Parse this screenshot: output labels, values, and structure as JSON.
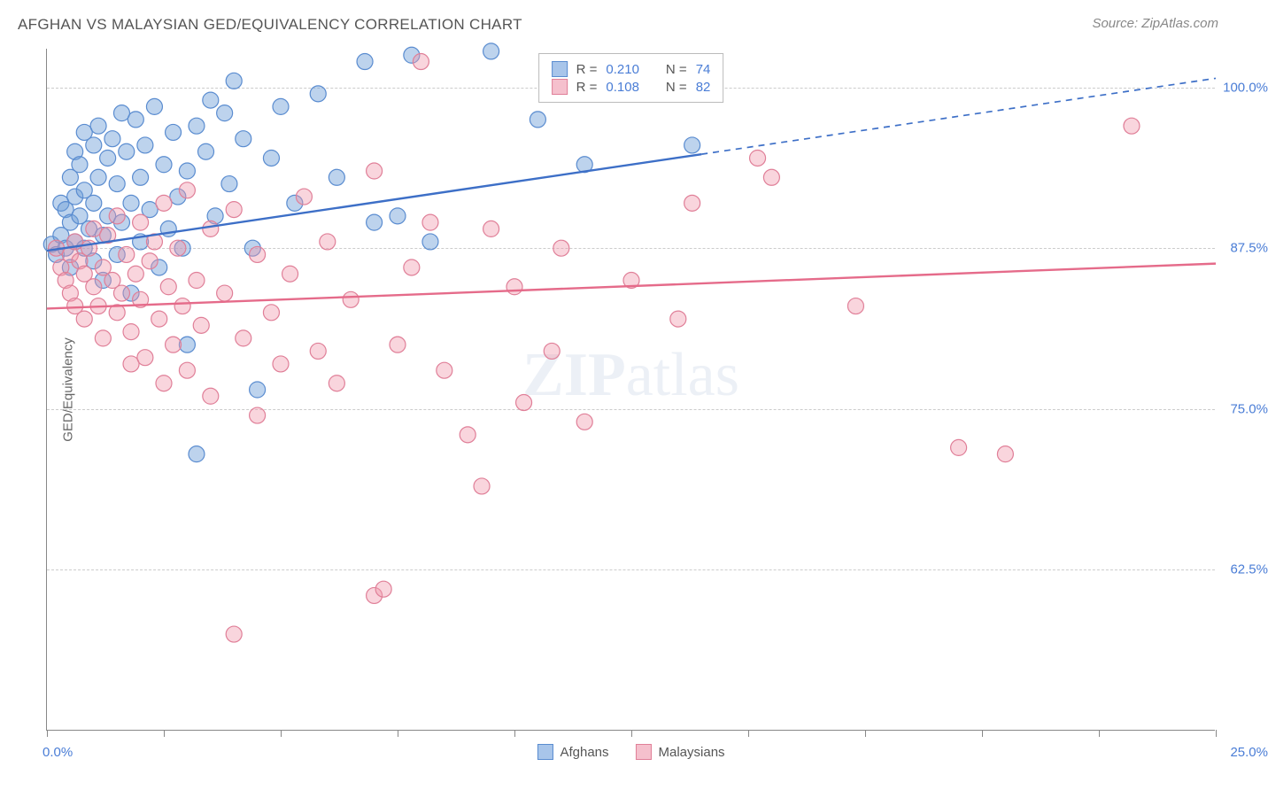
{
  "title": "AFGHAN VS MALAYSIAN GED/EQUIVALENCY CORRELATION CHART",
  "source": "Source: ZipAtlas.com",
  "watermark_bold": "ZIP",
  "watermark_rest": "atlas",
  "y_axis_title": "GED/Equivalency",
  "chart": {
    "type": "scatter",
    "xlim": [
      0,
      25
    ],
    "ylim": [
      50,
      103
    ],
    "x_ticks": [
      0,
      2.5,
      5,
      7.5,
      10,
      12.5,
      15,
      17.5,
      20,
      22.5,
      25
    ],
    "x_label_min": "0.0%",
    "x_label_max": "25.0%",
    "y_gridlines": [
      62.5,
      75,
      87.5,
      100
    ],
    "y_tick_labels": [
      "62.5%",
      "75.0%",
      "87.5%",
      "100.0%"
    ],
    "grid_color": "#cccccc",
    "background": "#ffffff",
    "series": [
      {
        "name": "Afghans",
        "color_fill": "rgba(108,157,216,0.45)",
        "color_stroke": "#5a8cd0",
        "swatch_fill": "#a8c5ea",
        "swatch_border": "#5a8cd0",
        "marker_radius": 9,
        "R": "0.210",
        "N": "74",
        "trend": {
          "x1": 0,
          "y1": 87.3,
          "x2": 14,
          "y2": 94.8,
          "x2_dash": 25,
          "y2_dash": 100.7,
          "color": "#3d6fc7",
          "width": 2.4
        },
        "points": [
          [
            0.1,
            87.8
          ],
          [
            0.2,
            87.0
          ],
          [
            0.3,
            91.0
          ],
          [
            0.3,
            88.5
          ],
          [
            0.4,
            90.5
          ],
          [
            0.4,
            87.5
          ],
          [
            0.5,
            93.0
          ],
          [
            0.5,
            89.5
          ],
          [
            0.5,
            86.0
          ],
          [
            0.6,
            95.0
          ],
          [
            0.6,
            91.5
          ],
          [
            0.6,
            88.0
          ],
          [
            0.7,
            94.0
          ],
          [
            0.7,
            90.0
          ],
          [
            0.8,
            96.5
          ],
          [
            0.8,
            92.0
          ],
          [
            0.8,
            87.5
          ],
          [
            0.9,
            89.0
          ],
          [
            1.0,
            95.5
          ],
          [
            1.0,
            91.0
          ],
          [
            1.0,
            86.5
          ],
          [
            1.1,
            97.0
          ],
          [
            1.1,
            93.0
          ],
          [
            1.2,
            88.5
          ],
          [
            1.2,
            85.0
          ],
          [
            1.3,
            94.5
          ],
          [
            1.3,
            90.0
          ],
          [
            1.4,
            96.0
          ],
          [
            1.5,
            92.5
          ],
          [
            1.5,
            87.0
          ],
          [
            1.6,
            98.0
          ],
          [
            1.6,
            89.5
          ],
          [
            1.7,
            95.0
          ],
          [
            1.8,
            91.0
          ],
          [
            1.8,
            84.0
          ],
          [
            1.9,
            97.5
          ],
          [
            2.0,
            93.0
          ],
          [
            2.0,
            88.0
          ],
          [
            2.1,
            95.5
          ],
          [
            2.2,
            90.5
          ],
          [
            2.3,
            98.5
          ],
          [
            2.4,
            86.0
          ],
          [
            2.5,
            94.0
          ],
          [
            2.6,
            89.0
          ],
          [
            2.7,
            96.5
          ],
          [
            2.8,
            91.5
          ],
          [
            2.9,
            87.5
          ],
          [
            3.0,
            80.0
          ],
          [
            3.0,
            93.5
          ],
          [
            3.2,
            97.0
          ],
          [
            3.2,
            71.5
          ],
          [
            3.4,
            95.0
          ],
          [
            3.5,
            99.0
          ],
          [
            3.6,
            90.0
          ],
          [
            3.8,
            98.0
          ],
          [
            3.9,
            92.5
          ],
          [
            4.0,
            100.5
          ],
          [
            4.2,
            96.0
          ],
          [
            4.4,
            87.5
          ],
          [
            4.5,
            76.5
          ],
          [
            4.8,
            94.5
          ],
          [
            5.0,
            98.5
          ],
          [
            5.3,
            91.0
          ],
          [
            5.8,
            99.5
          ],
          [
            6.2,
            93.0
          ],
          [
            6.8,
            102.0
          ],
          [
            7.0,
            89.5
          ],
          [
            7.5,
            90.0
          ],
          [
            7.8,
            102.5
          ],
          [
            8.2,
            88.0
          ],
          [
            9.5,
            102.8
          ],
          [
            10.5,
            97.5
          ],
          [
            11.5,
            94.0
          ],
          [
            13.8,
            95.5
          ]
        ]
      },
      {
        "name": "Malaysians",
        "color_fill": "rgba(240,150,170,0.40)",
        "color_stroke": "#e07f98",
        "swatch_fill": "#f5c0cd",
        "swatch_border": "#e07f98",
        "marker_radius": 9,
        "R": "0.108",
        "N": "82",
        "trend": {
          "x1": 0,
          "y1": 82.8,
          "x2": 25,
          "y2": 86.3,
          "color": "#e56b8a",
          "width": 2.4
        },
        "points": [
          [
            0.2,
            87.5
          ],
          [
            0.3,
            86.0
          ],
          [
            0.4,
            85.0
          ],
          [
            0.5,
            87.0
          ],
          [
            0.5,
            84.0
          ],
          [
            0.6,
            88.0
          ],
          [
            0.6,
            83.0
          ],
          [
            0.7,
            86.5
          ],
          [
            0.8,
            85.5
          ],
          [
            0.8,
            82.0
          ],
          [
            0.9,
            87.5
          ],
          [
            1.0,
            84.5
          ],
          [
            1.0,
            89.0
          ],
          [
            1.1,
            83.0
          ],
          [
            1.2,
            86.0
          ],
          [
            1.2,
            80.5
          ],
          [
            1.3,
            88.5
          ],
          [
            1.4,
            85.0
          ],
          [
            1.5,
            82.5
          ],
          [
            1.5,
            90.0
          ],
          [
            1.6,
            84.0
          ],
          [
            1.7,
            87.0
          ],
          [
            1.8,
            81.0
          ],
          [
            1.8,
            78.5
          ],
          [
            1.9,
            85.5
          ],
          [
            2.0,
            89.5
          ],
          [
            2.0,
            83.5
          ],
          [
            2.1,
            79.0
          ],
          [
            2.2,
            86.5
          ],
          [
            2.3,
            88.0
          ],
          [
            2.4,
            82.0
          ],
          [
            2.5,
            77.0
          ],
          [
            2.5,
            91.0
          ],
          [
            2.6,
            84.5
          ],
          [
            2.7,
            80.0
          ],
          [
            2.8,
            87.5
          ],
          [
            2.9,
            83.0
          ],
          [
            3.0,
            92.0
          ],
          [
            3.0,
            78.0
          ],
          [
            3.2,
            85.0
          ],
          [
            3.3,
            81.5
          ],
          [
            3.5,
            89.0
          ],
          [
            3.5,
            76.0
          ],
          [
            3.8,
            84.0
          ],
          [
            4.0,
            57.5
          ],
          [
            4.0,
            90.5
          ],
          [
            4.2,
            80.5
          ],
          [
            4.5,
            74.5
          ],
          [
            4.5,
            87.0
          ],
          [
            4.8,
            82.5
          ],
          [
            5.0,
            78.5
          ],
          [
            5.2,
            85.5
          ],
          [
            5.5,
            91.5
          ],
          [
            5.8,
            79.5
          ],
          [
            6.0,
            88.0
          ],
          [
            6.2,
            77.0
          ],
          [
            6.5,
            83.5
          ],
          [
            7.0,
            60.5
          ],
          [
            7.0,
            93.5
          ],
          [
            7.2,
            61.0
          ],
          [
            7.5,
            80.0
          ],
          [
            7.8,
            86.0
          ],
          [
            8.0,
            102.0
          ],
          [
            8.2,
            89.5
          ],
          [
            8.5,
            78.0
          ],
          [
            9.0,
            73.0
          ],
          [
            9.3,
            69.0
          ],
          [
            9.5,
            89.0
          ],
          [
            10.0,
            84.5
          ],
          [
            10.2,
            75.5
          ],
          [
            10.8,
            79.5
          ],
          [
            11.0,
            87.5
          ],
          [
            11.5,
            74.0
          ],
          [
            12.5,
            85.0
          ],
          [
            13.5,
            82.0
          ],
          [
            13.8,
            91.0
          ],
          [
            15.2,
            94.5
          ],
          [
            15.5,
            93.0
          ],
          [
            17.3,
            83.0
          ],
          [
            19.5,
            72.0
          ],
          [
            20.5,
            71.5
          ],
          [
            23.2,
            97.0
          ]
        ]
      }
    ]
  },
  "legend_top": {
    "r_label": "R =",
    "n_label": "N ="
  },
  "legend_bottom": [
    "Afghans",
    "Malaysians"
  ]
}
